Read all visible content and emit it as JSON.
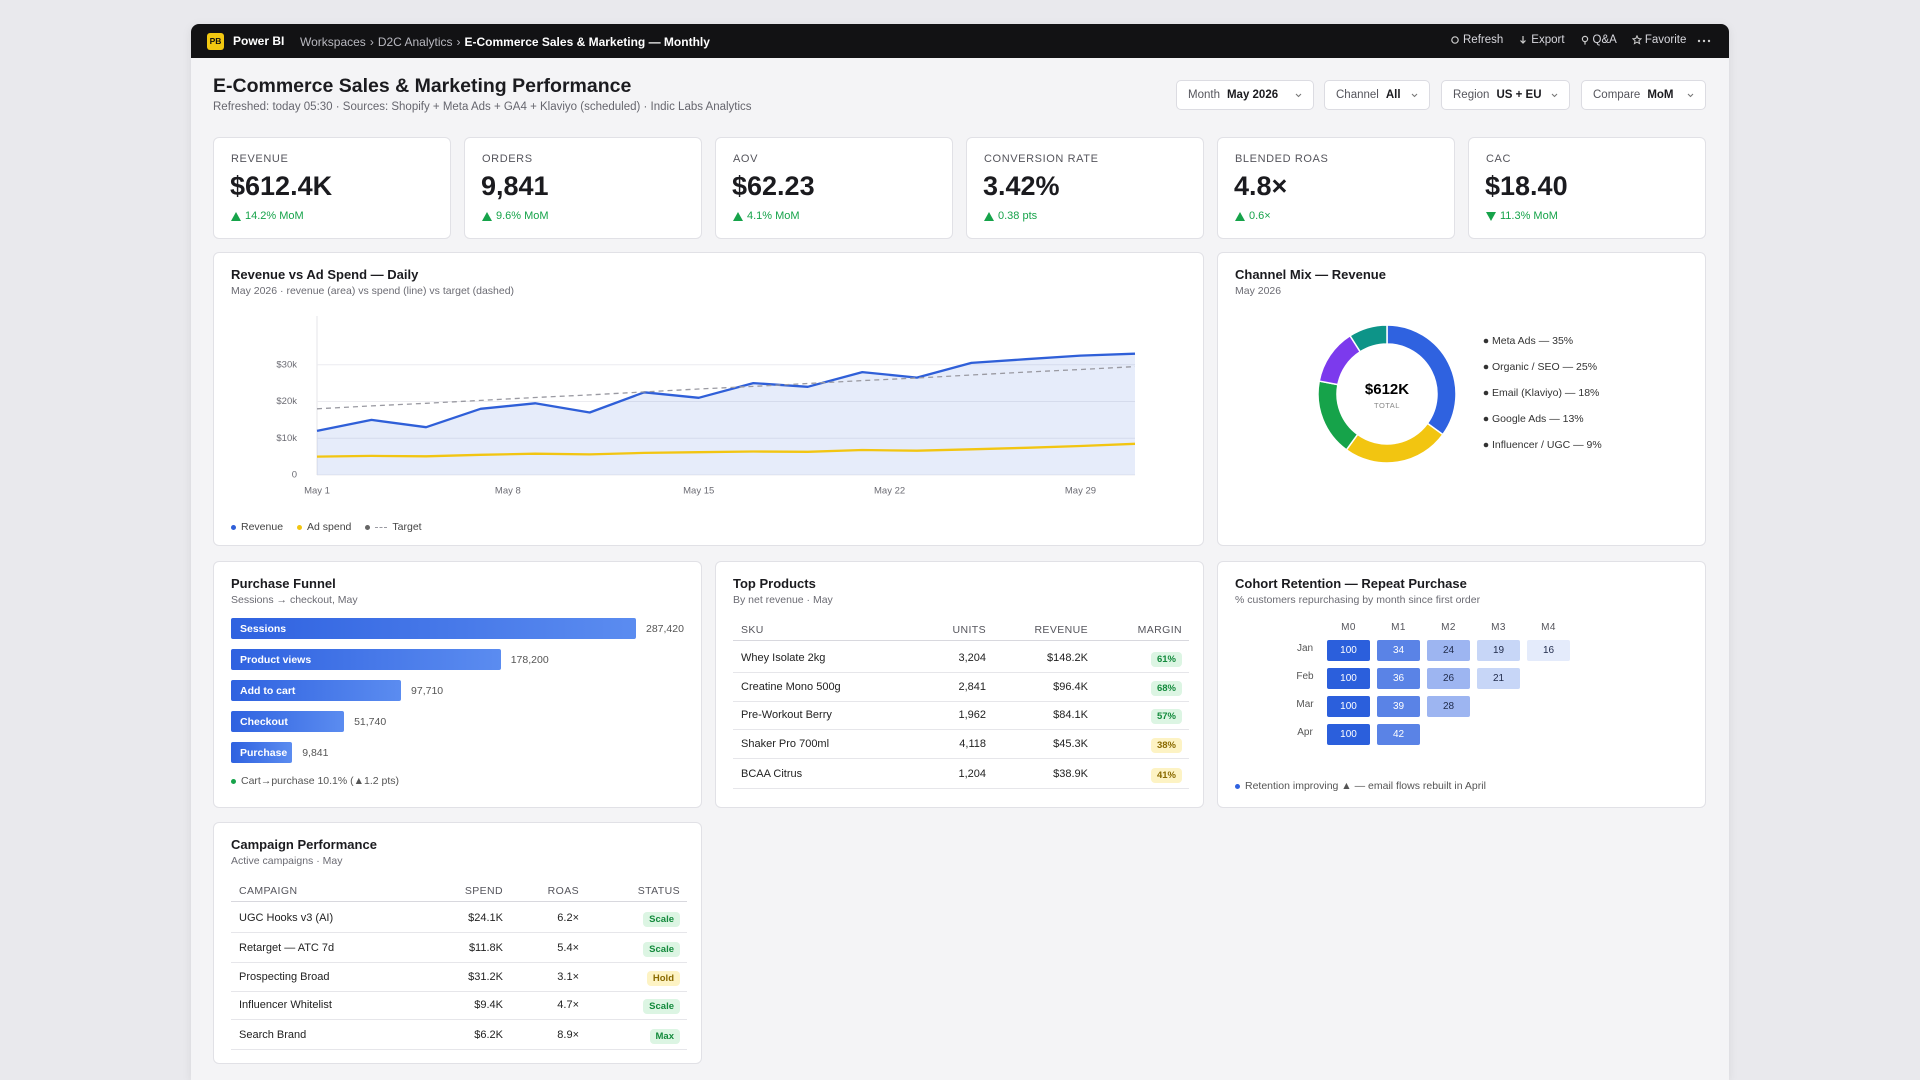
{
  "topbar": {
    "logo": "PB",
    "app": "Power BI",
    "breadcrumb": [
      "Workspaces",
      "D2C Analytics"
    ],
    "current": "E-Commerce Sales & Marketing — Monthly",
    "actions": [
      "Refresh",
      "Export",
      "Q&A",
      "Favorite"
    ]
  },
  "header": {
    "title": "E-Commerce Sales & Marketing Performance",
    "subtitle": "Refreshed: today 05:30 · Sources: Shopify + Meta Ads + GA4 + Klaviyo (scheduled) · Indic Labs Analytics"
  },
  "filters": [
    {
      "label": "Month",
      "value": "May 2026"
    },
    {
      "label": "Channel",
      "value": "All"
    },
    {
      "label": "Region",
      "value": "US + EU"
    },
    {
      "label": "Compare",
      "value": "MoM"
    }
  ],
  "kpis": [
    {
      "label": "REVENUE",
      "value": "$612.4K",
      "delta": "14.2% MoM",
      "direction": "up"
    },
    {
      "label": "ORDERS",
      "value": "9,841",
      "delta": "9.6% MoM",
      "direction": "up"
    },
    {
      "label": "AOV",
      "value": "$62.23",
      "delta": "4.1% MoM",
      "direction": "up"
    },
    {
      "label": "CONVERSION RATE",
      "value": "3.42%",
      "delta": "0.38 pts",
      "direction": "up"
    },
    {
      "label": "BLENDED ROAS",
      "value": "4.8×",
      "delta": "0.6×",
      "direction": "up"
    },
    {
      "label": "CAC",
      "value": "$18.40",
      "delta": "11.3% MoM",
      "direction": "down"
    }
  ],
  "revenue_chart": {
    "type": "line",
    "title": "Revenue vs Ad Spend — Daily",
    "subtitle": "May 2026 · revenue (area) vs spend (line) vs target (dashed)",
    "x": [
      1,
      3,
      5,
      7,
      9,
      11,
      13,
      15,
      17,
      19,
      21,
      23,
      25,
      27,
      29,
      31
    ],
    "xlim": [
      1,
      31
    ],
    "xticks": [
      {
        "value": 1,
        "label": "May 1"
      },
      {
        "value": 8,
        "label": "May 8"
      },
      {
        "value": 15,
        "label": "May 15"
      },
      {
        "value": 22,
        "label": "May 22"
      },
      {
        "value": 29,
        "label": "May 29"
      }
    ],
    "ylim": [
      0,
      40000
    ],
    "yticks": [
      0,
      {
        "value": 10000,
        "label": "$10k"
      },
      {
        "value": 20000,
        "label": "$20k"
      },
      {
        "value": 30000,
        "label": "$30k"
      }
    ],
    "grid": true,
    "series": [
      {
        "name": "Revenue",
        "color": "#2f5fd8",
        "style": "area",
        "values": [
          12000,
          15000,
          13000,
          18000,
          19500,
          17000,
          22500,
          21000,
          25000,
          24000,
          28000,
          26500,
          30500,
          31500,
          32500,
          33000
        ]
      },
      {
        "name": "Ad spend",
        "color": "#f2c511",
        "style": "line",
        "values": [
          5000,
          5200,
          5100,
          5500,
          5800,
          5600,
          6000,
          6200,
          6400,
          6300,
          6800,
          6600,
          7000,
          7400,
          7900,
          8500
        ]
      },
      {
        "name": "Target",
        "color": "#9a9aa2",
        "style": "dashed",
        "values": [
          18000,
          18800,
          19500,
          20300,
          21100,
          21800,
          22600,
          23400,
          24100,
          24900,
          25700,
          26400,
          27200,
          28000,
          28700,
          29500
        ]
      }
    ]
  },
  "channel_mix": {
    "type": "pie",
    "title": "Channel Mix — Revenue",
    "subtitle": "May 2026",
    "center_value": "$612K",
    "center_label": "TOTAL",
    "labels": [
      "Meta Ads — 35%",
      "Organic / SEO — 25%",
      "Email (Klaviyo) — 18%",
      "Google Ads — 13%",
      "Influencer / UGC — 9%"
    ],
    "values": [
      35,
      25,
      18,
      13,
      9
    ],
    "colors": [
      "#2f62e0",
      "#f2c511",
      "#16a34a",
      "#7c3aed",
      "#0d9488"
    ]
  },
  "funnel": {
    "type": "bar",
    "orientation": "horizontal",
    "title": "Purchase Funnel",
    "subtitle": "Sessions → checkout, May",
    "categories": [
      "Sessions",
      "Product views",
      "Add to cart",
      "Checkout",
      "Purchase"
    ],
    "values": [
      287420,
      178200,
      97710,
      51740,
      9841
    ],
    "value_labels": [
      "287,420",
      "178,200",
      "97,710",
      "51,740",
      "9,841"
    ],
    "color": "#2f62e0",
    "note": "Cart→purchase 10.1% (▲1.2 pts)"
  },
  "top_products": {
    "title": "Top Products",
    "subtitle": "By net revenue · May",
    "columns": [
      "SKU",
      "UNITS",
      "REVENUE",
      "MARGIN"
    ],
    "rows": [
      [
        "Whey Isolate 2kg",
        "3,204",
        "$148.2K",
        "61%"
      ],
      [
        "Creatine Mono 500g",
        "2,841",
        "$96.4K",
        "68%"
      ],
      [
        "Pre-Workout Berry",
        "1,962",
        "$84.1K",
        "57%"
      ],
      [
        "Shaker Pro 700ml",
        "4,118",
        "$45.3K",
        "38%"
      ],
      [
        "BCAA Citrus",
        "1,204",
        "$38.9K",
        "41%"
      ]
    ],
    "tones": [
      "good",
      "good",
      "good",
      "warn",
      "warn"
    ]
  },
  "cohort": {
    "title": "Cohort Retention — Repeat Purchase",
    "subtitle": "% customers repurchasing by month since first order",
    "columns": [
      "M0",
      "M1",
      "M2",
      "M3",
      "M4"
    ],
    "rows": [
      {
        "label": "Jan",
        "values": [
          100,
          34,
          24,
          19,
          16
        ]
      },
      {
        "label": "Feb",
        "values": [
          100,
          36,
          26,
          21
        ]
      },
      {
        "label": "Mar",
        "values": [
          100,
          39,
          28
        ]
      },
      {
        "label": "Apr",
        "values": [
          100,
          42
        ]
      }
    ],
    "note": "Retention improving ▲ — email flows rebuilt in April"
  },
  "campaigns": {
    "title": "Campaign Performance",
    "subtitle": "Active campaigns · May",
    "columns": [
      "CAMPAIGN",
      "SPEND",
      "ROAS",
      "STATUS"
    ],
    "rows": [
      [
        "UGC Hooks v3 (AI)",
        "$24.1K",
        "6.2×",
        "Scale"
      ],
      [
        "Retarget — ATC 7d",
        "$11.8K",
        "5.4×",
        "Scale"
      ],
      [
        "Prospecting Broad",
        "$31.2K",
        "3.1×",
        "Hold"
      ],
      [
        "Influencer Whitelist",
        "$9.4K",
        "4.7×",
        "Scale"
      ],
      [
        "Search Brand",
        "$6.2K",
        "8.9×",
        "Max"
      ]
    ],
    "tones": [
      "good",
      "good",
      "warn",
      "good",
      "good"
    ]
  }
}
